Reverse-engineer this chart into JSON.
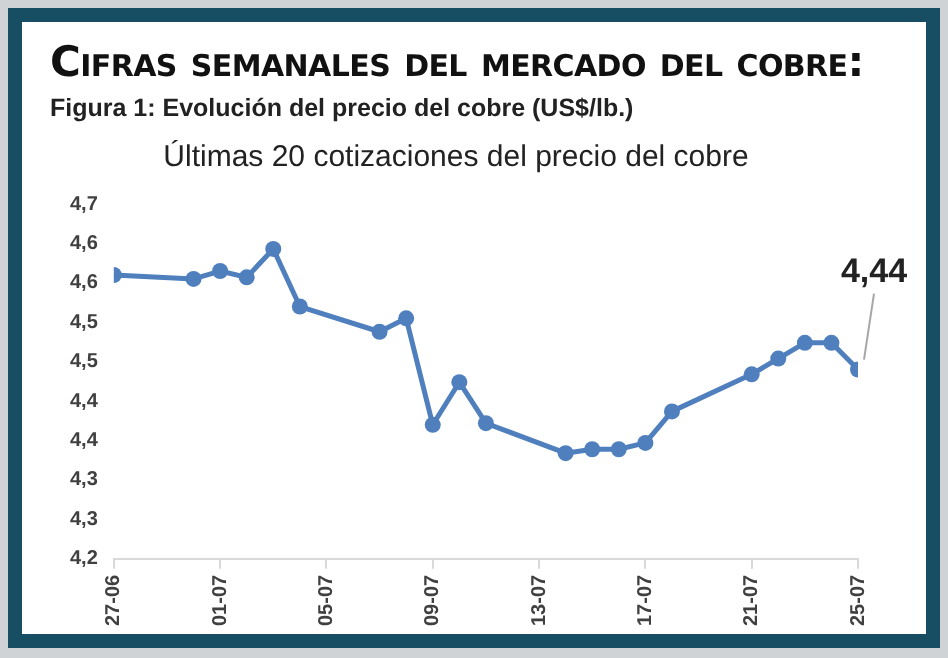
{
  "chart_data": {
    "type": "line",
    "title": "Cifras semanales del mercado del cobre:",
    "subtitle": "Figura 1: Evolución del precio del cobre (US$/lb.)",
    "annotations": [
      "Últimas 20 cotizaciones del precio del cobre",
      {
        "text": "4,44",
        "x": "--07-25",
        "y": 4.44
      }
    ],
    "x": [
      "--06-27",
      "--06-30",
      "--07-01",
      "--07-02",
      "--07-03",
      "--07-04",
      "--07-07",
      "--07-08",
      "--07-09",
      "--07-10",
      "--07-11",
      "--07-14",
      "--07-15",
      "--07-16",
      "--07-17",
      "--07-18",
      "--07-21",
      "--07-22",
      "--07-23",
      "--07-24",
      "--07-25"
    ],
    "series": [
      {
        "color": "#4f7fbd",
        "values": [
          4.56,
          4.555,
          4.565,
          4.557,
          4.593,
          4.52,
          4.488,
          4.505,
          4.37,
          4.424,
          4.372,
          4.334,
          4.339,
          4.339,
          4.347,
          4.387,
          4.434,
          4.454,
          4.474,
          4.474,
          4.44
        ]
      }
    ],
    "xlim": [
      "--06-27",
      "--07-25"
    ],
    "xticks": [
      {
        "value": "--06-27",
        "label": "27-06"
      },
      {
        "value": "--07-01",
        "label": "01-07"
      },
      {
        "value": "--07-05",
        "label": "05-07"
      },
      {
        "value": "--07-09",
        "label": "09-07"
      },
      {
        "value": "--07-13",
        "label": "13-07"
      },
      {
        "value": "--07-17",
        "label": "17-07"
      },
      {
        "value": "--07-21",
        "label": "21-07"
      },
      {
        "value": "--07-25",
        "label": "25-07"
      }
    ],
    "ylim": [
      4.2,
      4.65
    ],
    "yticks": [
      {
        "value": 4.2,
        "label": "4,2"
      },
      {
        "value": 4.25,
        "label": "4,3"
      },
      {
        "value": 4.3,
        "label": "4,3"
      },
      {
        "value": 4.35,
        "label": "4,4"
      },
      {
        "value": 4.4,
        "label": "4,4"
      },
      {
        "value": 4.45,
        "label": "4,5"
      },
      {
        "value": 4.5,
        "label": "4,5"
      },
      {
        "value": 4.55,
        "label": "4,6"
      },
      {
        "value": 4.6,
        "label": "4,6"
      },
      {
        "value": 4.65,
        "label": "4,7"
      }
    ],
    "grid": false,
    "legend": false,
    "marker": "circle",
    "line_style": "solid"
  }
}
